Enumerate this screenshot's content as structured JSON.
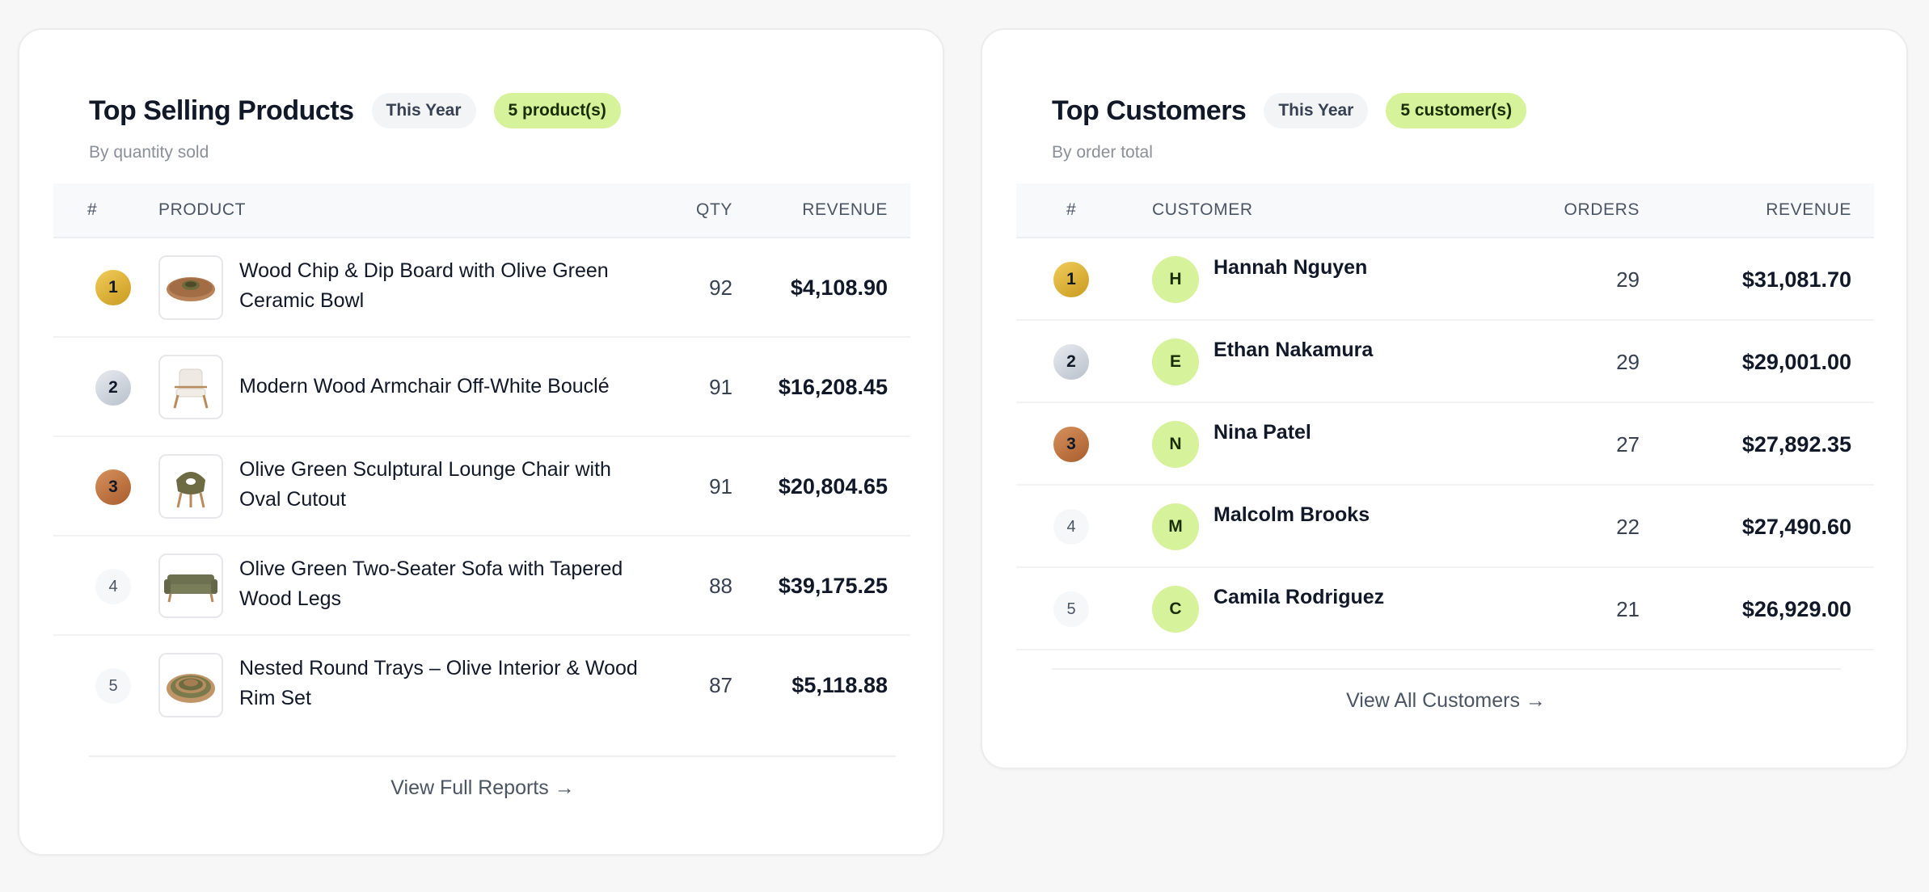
{
  "products_panel": {
    "title": "Top Selling Products",
    "period_badge": "This Year",
    "count_badge": "5 product(s)",
    "subtitle": "By quantity sold",
    "columns": {
      "rank": "#",
      "product": "PRODUCT",
      "qty": "QTY",
      "revenue": "REVENUE"
    },
    "rows": [
      {
        "rank": "1",
        "name_line1": "Wood Chip & Dip Board with Olive Green",
        "name_line2": "Ceramic Bowl",
        "qty": "92",
        "revenue": "$4,108.90",
        "thumb_icon": "chip-dip-board-icon"
      },
      {
        "rank": "2",
        "name_line1": "Modern Wood Armchair Off-White Bouclé",
        "name_line2": "",
        "qty": "91",
        "revenue": "$16,208.45",
        "thumb_icon": "armchair-icon"
      },
      {
        "rank": "3",
        "name_line1": "Olive Green Sculptural Lounge Chair with",
        "name_line2": "Oval Cutout",
        "qty": "91",
        "revenue": "$20,804.65",
        "thumb_icon": "lounge-chair-icon"
      },
      {
        "rank": "4",
        "name_line1": "Olive Green Two-Seater Sofa with Tapered",
        "name_line2": "Wood Legs",
        "qty": "88",
        "revenue": "$39,175.25",
        "thumb_icon": "sofa-icon"
      },
      {
        "rank": "5",
        "name_line1": "Nested Round Trays – Olive Interior & Wood",
        "name_line2": "Rim Set",
        "qty": "87",
        "revenue": "$5,118.88",
        "thumb_icon": "nested-trays-icon"
      }
    ],
    "footer_link": "View Full Reports →"
  },
  "customers_panel": {
    "title": "Top Customers",
    "period_badge": "This Year",
    "count_badge": "5 customer(s)",
    "subtitle": "By order total",
    "columns": {
      "rank": "#",
      "customer": "CUSTOMER",
      "orders": "ORDERS",
      "revenue": "REVENUE"
    },
    "rows": [
      {
        "rank": "1",
        "initial": "H",
        "name": "Hannah Nguyen",
        "orders": "29",
        "revenue": "$31,081.70"
      },
      {
        "rank": "2",
        "initial": "E",
        "name": "Ethan Nakamura",
        "orders": "29",
        "revenue": "$29,001.00"
      },
      {
        "rank": "3",
        "initial": "N",
        "name": "Nina Patel",
        "orders": "27",
        "revenue": "$27,892.35"
      },
      {
        "rank": "4",
        "initial": "M",
        "name": "Malcolm Brooks",
        "orders": "22",
        "revenue": "$27,490.60"
      },
      {
        "rank": "5",
        "initial": "C",
        "name": "Camila Rodriguez",
        "orders": "21",
        "revenue": "$26,929.00"
      }
    ],
    "footer_link": "View All Customers →"
  },
  "colors": {
    "accent_green": "#d6f29a",
    "gold": "#d9b23a",
    "silver": "#cfd4dc",
    "bronze": "#bf7342"
  }
}
